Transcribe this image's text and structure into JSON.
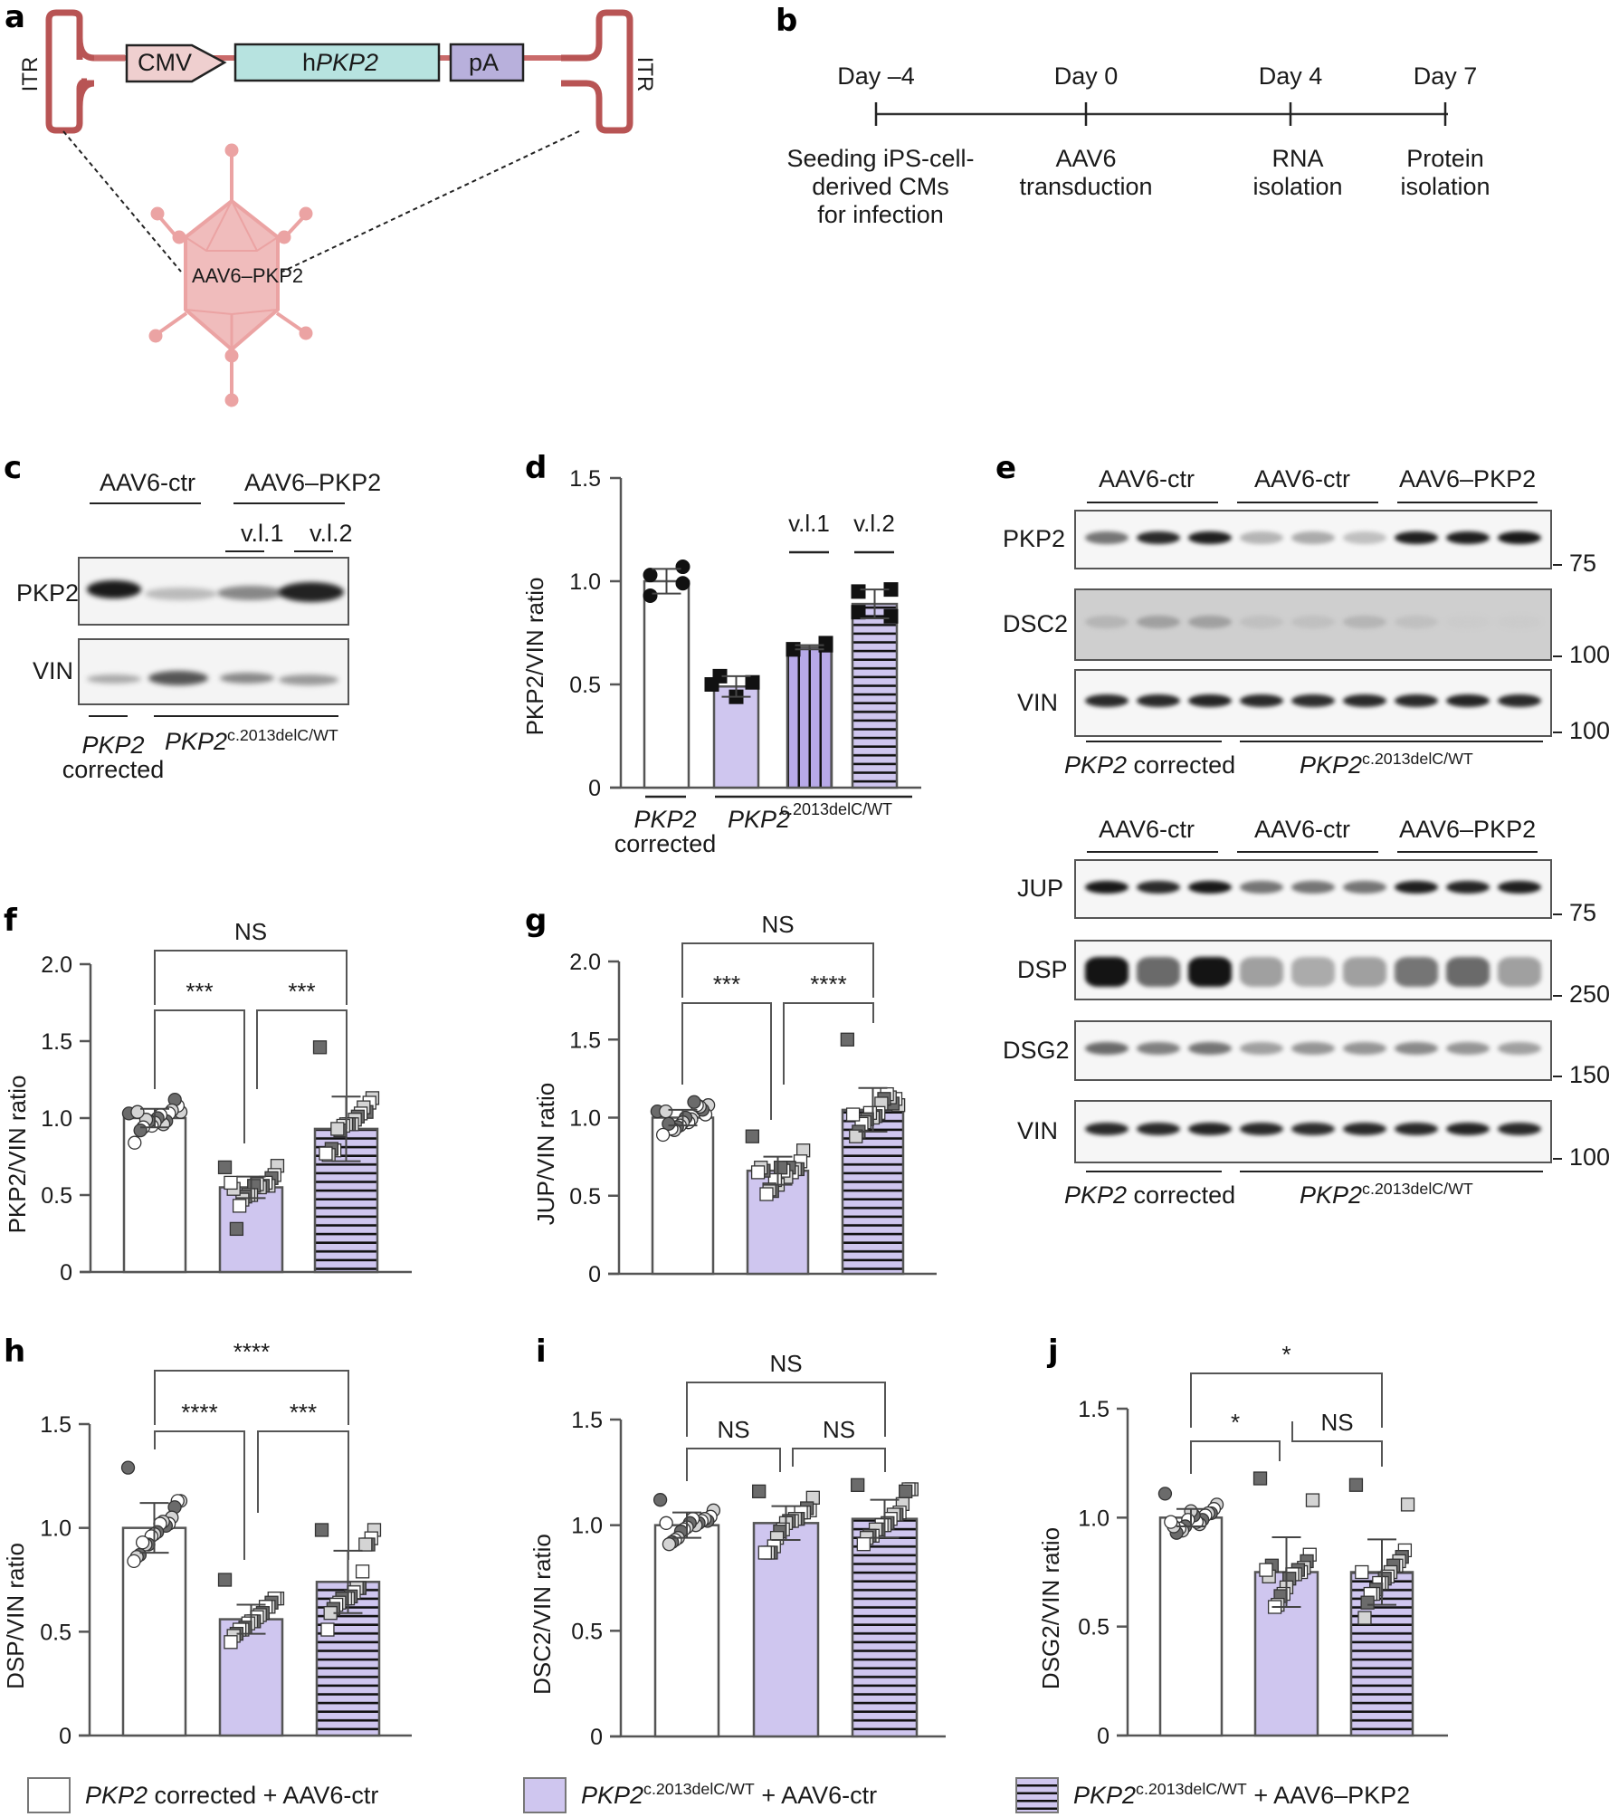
{
  "panel_labels": {
    "a": "a",
    "b": "b",
    "c": "c",
    "d": "d",
    "e": "e",
    "f": "f",
    "g": "g",
    "h": "h",
    "i": "i",
    "j": "j"
  },
  "colors": {
    "lavender": "#cfc6ef",
    "lavender_dark": "#b7a9e8",
    "itr": "#b85454",
    "cmv": "#efcfcf",
    "hpkp2": "#b7e3e0",
    "pa": "#b8b0dc",
    "capsid": "#eba3a3",
    "capsid_fill": "#f0bcbc",
    "dot_dark": "#6b6b6b",
    "dot_light": "#d4d4d4",
    "dot_white": "#ffffff"
  },
  "panel_a": {
    "itr_left": "ITR",
    "itr_right": "ITR",
    "cmv": "CMV",
    "hpkp2_prefix": "h",
    "hpkp2_gene": "PKP2",
    "pa": "pA",
    "capsid": "AAV6–PKP2"
  },
  "panel_b": {
    "days": [
      "Day –4",
      "Day 0",
      "Day 4",
      "Day 7"
    ],
    "events": [
      [
        "Seeding iPS-cell-",
        "derived CMs",
        "for infection"
      ],
      [
        "AAV6",
        "transduction"
      ],
      [
        "RNA",
        "isolation"
      ],
      [
        "Protein",
        "isolation"
      ]
    ]
  },
  "panel_c": {
    "group_ctr": "AAV6-ctr",
    "group_pkp2": "AAV6–PKP2",
    "vl1": "v.l.1",
    "vl2": "v.l.2",
    "rows": [
      "PKP2",
      "VIN"
    ],
    "genotype_corrected_gene": "PKP2",
    "genotype_corrected_word": "corrected",
    "genotype_mut_gene": "PKP2",
    "genotype_mut_sup": "c.2013delC/WT"
  },
  "panel_e": {
    "groups": [
      "AAV6-ctr",
      "AAV6-ctr",
      "AAV6–PKP2"
    ],
    "blot1_rows": [
      {
        "name": "PKP2",
        "marker": "75"
      },
      {
        "name": "DSC2",
        "marker": "100"
      },
      {
        "name": "VIN",
        "marker": "100"
      }
    ],
    "blot2_rows": [
      {
        "name": "JUP",
        "marker": "75"
      },
      {
        "name": "DSP",
        "marker": "250"
      },
      {
        "name": "DSG2",
        "marker": "150"
      },
      {
        "name": "VIN",
        "marker": "100"
      }
    ],
    "genotype_corrected_gene": "PKP2",
    "genotype_corrected_word": " corrected",
    "genotype_mut_gene": "PKP2",
    "genotype_mut_sup": "c.2013delC/WT"
  },
  "chart_data": [
    {
      "id": "d",
      "type": "bar",
      "ylabel": "PKP2/VIN ratio",
      "ylim": [
        0,
        1.5
      ],
      "yticks": [
        "0",
        "0.5",
        "1.0",
        "1.5"
      ],
      "categories": [
        "PKP2 corrected",
        "PKP2c.2013delC/WT v.l.0",
        "PKP2c.2013delC/WT v.l.1",
        "PKP2c.2013delC/WT v.l.2"
      ],
      "bar_labels": [
        "",
        "",
        "v.l.1",
        "v.l.2"
      ],
      "values": [
        1.0,
        0.49,
        0.68,
        0.89
      ],
      "errors": [
        0.06,
        0.05,
        0.01,
        0.07
      ],
      "points": [
        [
          1.03,
          1.07,
          0.93,
          0.99
        ],
        [
          0.54,
          0.51,
          0.5,
          0.44
        ],
        [
          0.67,
          0.7,
          0.67,
          0.69
        ],
        [
          0.95,
          0.96,
          0.85,
          0.83
        ]
      ],
      "xlabel_corrected_gene": "PKP2",
      "xlabel_corrected_word": "corrected",
      "xlabel_mut_gene": "PKP2",
      "xlabel_mut_sup": "c.2013delC/WT"
    },
    {
      "id": "f",
      "type": "bar",
      "ylabel": "PKP2/VIN ratio",
      "ylim": [
        0,
        2.0
      ],
      "yticks": [
        "0",
        "0.5",
        "1.0",
        "1.5",
        "2.0"
      ],
      "values": [
        1.0,
        0.55,
        0.93
      ],
      "errors": [
        0.06,
        0.07,
        0.21
      ],
      "significance": {
        "top": "NS",
        "left": "***",
        "right": "***"
      },
      "points": [
        [
          1.03,
          1.04,
          1.08,
          1.12,
          1.05,
          1.03,
          0.98,
          0.96,
          1.02,
          1.0,
          0.97,
          0.95,
          0.98,
          0.99,
          0.94,
          0.92,
          1.04,
          0.84
        ],
        [
          0.68,
          0.69,
          0.63,
          0.61,
          0.56,
          0.58,
          0.56,
          0.55,
          0.57,
          0.56,
          0.5,
          0.5,
          0.49,
          0.47,
          0.43,
          0.28,
          0.54,
          0.58
        ],
        [
          1.46,
          1.13,
          1.1,
          1.04,
          1.07,
          1.03,
          1.01,
          0.99,
          0.96,
          0.96,
          0.96,
          0.95,
          0.92,
          0.93,
          0.79,
          0.8,
          0.76,
          0.77
        ]
      ]
    },
    {
      "id": "g",
      "type": "bar",
      "ylabel": "JUP/VIN ratio",
      "ylim": [
        0,
        2.0
      ],
      "yticks": [
        "0",
        "0.5",
        "1.0",
        "1.5",
        "2.0"
      ],
      "values": [
        1.0,
        0.66,
        1.05
      ],
      "errors": [
        0.05,
        0.09,
        0.14
      ],
      "significance": {
        "top": "NS",
        "left": "***",
        "right": "****"
      },
      "points": [
        [
          1.04,
          1.08,
          1.02,
          1.05,
          1.07,
          1.08,
          1.1,
          0.99,
          0.97,
          1.0,
          0.97,
          0.95,
          0.94,
          0.92,
          0.93,
          0.96,
          1.04,
          0.89
        ],
        [
          0.88,
          0.79,
          0.72,
          0.67,
          0.67,
          0.65,
          0.68,
          0.62,
          0.66,
          0.68,
          0.57,
          0.6,
          0.53,
          0.54,
          0.51,
          0.66,
          0.68,
          0.65
        ],
        [
          1.5,
          1.08,
          1.12,
          1.09,
          1.13,
          1.15,
          1.12,
          1.09,
          1.03,
          1.01,
          1.0,
          1.03,
          0.99,
          0.97,
          0.96,
          0.91,
          0.88,
          1.02
        ]
      ]
    },
    {
      "id": "h",
      "type": "bar",
      "ylabel": "DSP/VIN ratio",
      "ylim": [
        0,
        1.5
      ],
      "yticks": [
        "0",
        "0.5",
        "1.0",
        "1.5"
      ],
      "values": [
        1.0,
        0.56,
        0.74
      ],
      "errors": [
        0.12,
        0.07,
        0.15
      ],
      "significance": {
        "top": "****",
        "left": "****",
        "right": "***"
      },
      "points": [
        [
          1.29,
          1.13,
          1.13,
          1.1,
          1.05,
          1.02,
          1.01,
          1.03,
          1.02,
          0.98,
          0.97,
          0.96,
          0.92,
          0.92,
          0.93,
          0.87,
          0.86,
          0.84
        ],
        [
          0.75,
          0.66,
          0.66,
          0.64,
          0.62,
          0.62,
          0.59,
          0.58,
          0.57,
          0.55,
          0.55,
          0.54,
          0.52,
          0.51,
          0.51,
          0.49,
          0.48,
          0.45
        ],
        [
          0.99,
          0.99,
          0.95,
          0.92,
          0.92,
          0.79,
          0.71,
          0.71,
          0.69,
          0.67,
          0.66,
          0.66,
          0.66,
          0.64,
          0.63,
          0.61,
          0.59,
          0.51
        ]
      ]
    },
    {
      "id": "i",
      "type": "bar",
      "ylabel": "DSC2/VIN ratio",
      "ylim": [
        0,
        1.5
      ],
      "yticks": [
        "0",
        "0.5",
        "1.0",
        "1.5"
      ],
      "values": [
        1.0,
        1.01,
        1.03
      ],
      "errors": [
        0.06,
        0.08,
        0.09
      ],
      "significance": {
        "top": "NS",
        "left": "NS",
        "right": "NS"
      },
      "points": [
        [
          1.12,
          1.07,
          1.04,
          1.02,
          1.03,
          1.02,
          1.01,
          1.0,
          1.03,
          1.01,
          0.99,
          0.98,
          0.97,
          0.94,
          0.93,
          0.92,
          0.91,
          1.01
        ],
        [
          1.16,
          1.13,
          1.07,
          1.08,
          1.06,
          1.06,
          1.03,
          1.03,
          1.02,
          1.02,
          1.01,
          0.98,
          0.97,
          0.94,
          0.9,
          0.87,
          0.87,
          0.87
        ],
        [
          1.19,
          1.17,
          1.17,
          1.16,
          1.1,
          1.06,
          1.05,
          1.05,
          1.03,
          1.01,
          1.0,
          1.0,
          0.98,
          0.98,
          0.95,
          0.95,
          0.94,
          0.91
        ]
      ]
    },
    {
      "id": "j",
      "type": "bar",
      "ylabel": "DSG2/VIN ratio",
      "ylim": [
        0,
        1.5
      ],
      "yticks": [
        "0",
        "0.5",
        "1.0",
        "1.5"
      ],
      "values": [
        1.0,
        0.75,
        0.75
      ],
      "errors": [
        0.04,
        0.16,
        0.15
      ],
      "significance": {
        "top": "*",
        "left": "*",
        "right": "NS"
      },
      "points": [
        [
          1.11,
          1.06,
          1.04,
          1.02,
          1.02,
          1.01,
          0.99,
          0.97,
          0.98,
          1.01,
          1.03,
          0.99,
          0.96,
          0.94,
          0.95,
          0.93,
          0.96,
          0.98
        ],
        [
          1.18,
          1.08,
          0.83,
          0.8,
          0.77,
          0.75,
          0.76,
          0.74,
          0.74,
          0.72,
          0.68,
          0.65,
          0.64,
          0.6,
          0.59,
          0.78,
          0.73,
          0.76
        ],
        [
          1.15,
          1.06,
          0.85,
          0.82,
          0.8,
          0.78,
          0.78,
          0.75,
          0.73,
          0.72,
          0.7,
          0.7,
          0.67,
          0.65,
          0.65,
          0.61,
          0.54,
          0.75
        ]
      ]
    }
  ],
  "legend": [
    {
      "gene": "PKP2",
      "sup": "",
      "rest": " corrected + AAV6-ctr",
      "style": "white"
    },
    {
      "gene": "PKP2",
      "sup": "c.2013delC/WT",
      "rest": " + AAV6-ctr",
      "style": "lavender"
    },
    {
      "gene": "PKP2",
      "sup": "c.2013delC/WT",
      "rest": " + AAV6–PKP2",
      "style": "striped"
    }
  ]
}
